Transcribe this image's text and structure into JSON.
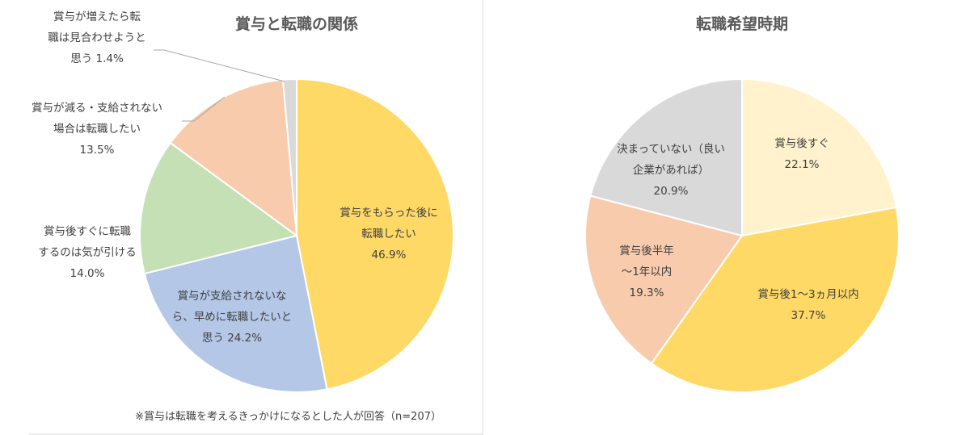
{
  "chart_data": [
    {
      "type": "pie",
      "title": "賞与と転職の関係",
      "footnote": "※賞与は転職を考えるきっかけになるとした人が回答（n=207）",
      "slices": [
        {
          "lines": [
            "賞与をもらった後に",
            "転職したい",
            "46.9%"
          ],
          "value": 46.9,
          "color": "#FFD966"
        },
        {
          "lines": [
            "賞与が支給されないな",
            "ら、早めに転職したいと",
            "思う 24.2%"
          ],
          "value": 24.2,
          "color": "#B4C7E7"
        },
        {
          "lines": [
            "賞与後すぐに転職",
            "するのは気が引ける",
            "14.0%"
          ],
          "value": 14.0,
          "color": "#C5E0B4"
        },
        {
          "lines": [
            "賞与が減る・支給されない",
            "場合は転職したい",
            "13.5%"
          ],
          "value": 13.5,
          "color": "#F8CBAD"
        },
        {
          "lines": [
            "賞与が増えたら転",
            "職は見合わせようと",
            "思う 1.4%"
          ],
          "value": 1.4,
          "color": "#D9D9D9"
        }
      ]
    },
    {
      "type": "pie",
      "title": "転職希望時期",
      "slices": [
        {
          "lines": [
            "賞与後すぐ",
            "22.1%"
          ],
          "value": 22.1,
          "color": "#FFF2CC"
        },
        {
          "lines": [
            "賞与後1～3ヵ月以内",
            "37.7%"
          ],
          "value": 37.7,
          "color": "#FFD966"
        },
        {
          "lines": [
            "賞与後半年",
            "～1年以内",
            "19.3%"
          ],
          "value": 19.3,
          "color": "#F8CBAD"
        },
        {
          "lines": [
            "決まっていない（良い",
            "企業があれば）",
            "20.9%"
          ],
          "value": 20.9,
          "color": "#D9D9D9"
        }
      ]
    }
  ]
}
